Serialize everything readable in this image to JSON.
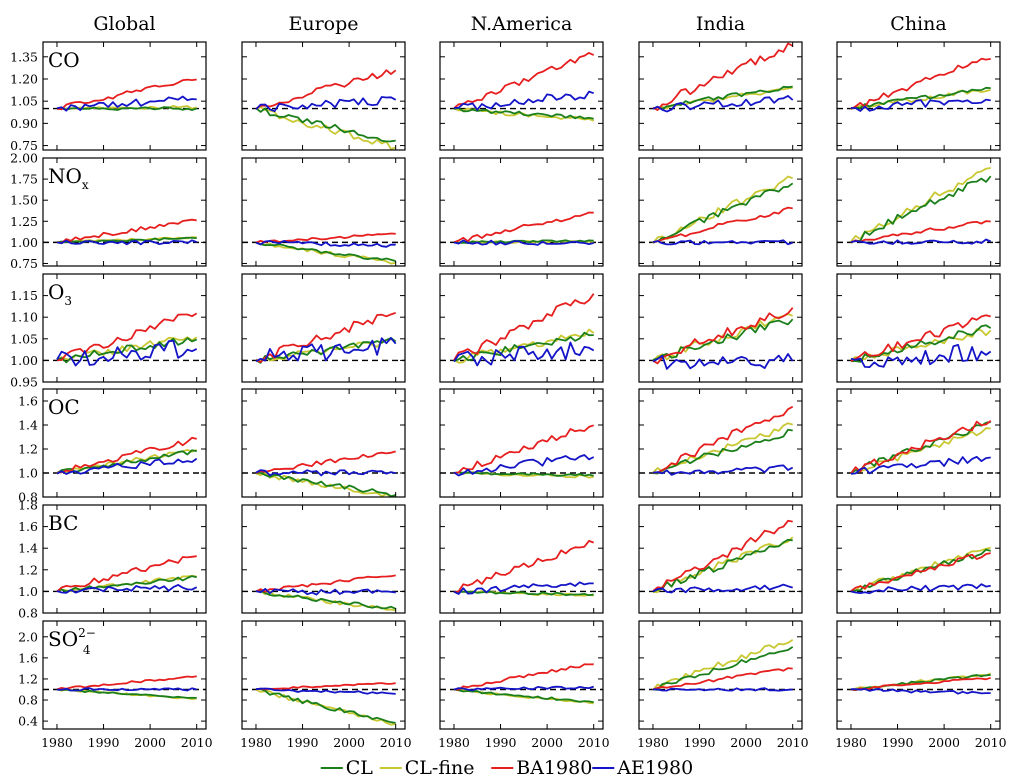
{
  "chart_data": {
    "type": "line",
    "regions": [
      "Global",
      "Europe",
      "N.America",
      "India",
      "China"
    ],
    "species": [
      {
        "key": "CO",
        "label": "CO",
        "sub": "",
        "sup": "",
        "ylim": [
          0.72,
          1.45
        ],
        "yticks": [
          "0.75",
          "0.90",
          "1.05",
          "1.20",
          "1.35"
        ]
      },
      {
        "key": "NOx",
        "label": "NO",
        "sub": "x",
        "sup": "",
        "ylim": [
          0.72,
          2.0
        ],
        "yticks": [
          "0.75",
          "1.00",
          "1.25",
          "1.50",
          "1.75",
          "2.00"
        ]
      },
      {
        "key": "O3",
        "label": "O",
        "sub": "3",
        "sup": "",
        "ylim": [
          0.95,
          1.2
        ],
        "yticks": [
          "0.95",
          "1.00",
          "1.05",
          "1.10",
          "1.15"
        ]
      },
      {
        "key": "OC",
        "label": "OC",
        "sub": "",
        "sup": "",
        "ylim": [
          0.8,
          1.7
        ],
        "yticks": [
          "0.8",
          "1.0",
          "1.2",
          "1.4",
          "1.6"
        ]
      },
      {
        "key": "BC",
        "label": "BC",
        "sub": "",
        "sup": "",
        "ylim": [
          0.8,
          1.8
        ],
        "yticks": [
          "0.8",
          "1.0",
          "1.2",
          "1.4",
          "1.6",
          "1.8"
        ]
      },
      {
        "key": "SO4",
        "label": "SO",
        "sub": "4",
        "sup": "2−",
        "ylim": [
          0.25,
          2.3
        ],
        "yticks": [
          "0.4",
          "0.8",
          "1.2",
          "1.6",
          "2.0"
        ]
      }
    ],
    "x_range": [
      1977,
      2012
    ],
    "xticks": [
      "1980",
      "1990",
      "2000",
      "2010"
    ],
    "legend": {
      "placement": "bottom-center",
      "entries": [
        {
          "name": "CL",
          "color": "#1a7f1a"
        },
        {
          "name": "CL-fine",
          "color": "#c8c832"
        },
        {
          "name": "BA1980",
          "color": "#e61e1e"
        },
        {
          "name": "AE1980",
          "color": "#1414c8"
        }
      ]
    },
    "reference_line": 1.0,
    "series_order": [
      "CL-fine",
      "CL",
      "BA1980",
      "AE1980"
    ],
    "end_values": {
      "CO": {
        "Global": {
          "CL": 1.0,
          "CL-fine": 1.01,
          "BA1980": 1.2,
          "AE1980": 1.06
        },
        "Europe": {
          "CL": 0.78,
          "CL-fine": 0.74,
          "BA1980": 1.26,
          "AE1980": 1.06
        },
        "N.America": {
          "CL": 0.93,
          "CL-fine": 0.92,
          "BA1980": 1.36,
          "AE1980": 1.1
        },
        "India": {
          "CL": 1.15,
          "CL-fine": 1.14,
          "BA1980": 1.43,
          "AE1980": 1.06
        },
        "China": {
          "CL": 1.14,
          "CL-fine": 1.13,
          "BA1980": 1.34,
          "AE1980": 1.06
        }
      },
      "NOx": {
        "Global": {
          "CL": 1.05,
          "CL-fine": 1.06,
          "BA1980": 1.26,
          "AE1980": 1.0
        },
        "Europe": {
          "CL": 0.78,
          "CL-fine": 0.76,
          "BA1980": 1.1,
          "AE1980": 0.97
        },
        "N.America": {
          "CL": 1.02,
          "CL-fine": 1.01,
          "BA1980": 1.35,
          "AE1980": 0.99
        },
        "India": {
          "CL": 1.7,
          "CL-fine": 1.76,
          "BA1980": 1.4,
          "AE1980": 1.0
        },
        "China": {
          "CL": 1.79,
          "CL-fine": 1.88,
          "BA1980": 1.25,
          "AE1980": 1.01
        }
      },
      "O3": {
        "Global": {
          "CL": 1.05,
          "CL-fine": 1.055,
          "BA1980": 1.11,
          "AE1980": 1.03
        },
        "Europe": {
          "CL": 1.045,
          "CL-fine": 1.045,
          "BA1980": 1.11,
          "AE1980": 1.04
        },
        "N.America": {
          "CL": 1.06,
          "CL-fine": 1.065,
          "BA1980": 1.155,
          "AE1980": 1.025
        },
        "India": {
          "CL": 1.095,
          "CL-fine": 1.105,
          "BA1980": 1.12,
          "AE1980": 1.0
        },
        "China": {
          "CL": 1.075,
          "CL-fine": 1.07,
          "BA1980": 1.1,
          "AE1980": 1.02
        }
      },
      "OC": {
        "Global": {
          "CL": 1.18,
          "CL-fine": 1.19,
          "BA1980": 1.28,
          "AE1980": 1.12
        },
        "Europe": {
          "CL": 0.82,
          "CL-fine": 0.8,
          "BA1980": 1.18,
          "AE1980": 1.0
        },
        "N.America": {
          "CL": 0.98,
          "CL-fine": 0.97,
          "BA1980": 1.4,
          "AE1980": 1.14
        },
        "India": {
          "CL": 1.35,
          "CL-fine": 1.4,
          "BA1980": 1.55,
          "AE1980": 1.04
        },
        "China": {
          "CL": 1.42,
          "CL-fine": 1.37,
          "BA1980": 1.44,
          "AE1980": 1.13
        }
      },
      "BC": {
        "Global": {
          "CL": 1.13,
          "CL-fine": 1.14,
          "BA1980": 1.33,
          "AE1980": 1.04
        },
        "Europe": {
          "CL": 0.84,
          "CL-fine": 0.82,
          "BA1980": 1.15,
          "AE1980": 0.99
        },
        "N.America": {
          "CL": 0.97,
          "CL-fine": 0.96,
          "BA1980": 1.45,
          "AE1980": 1.07
        },
        "India": {
          "CL": 1.47,
          "CL-fine": 1.5,
          "BA1980": 1.65,
          "AE1980": 1.04
        },
        "China": {
          "CL": 1.38,
          "CL-fine": 1.4,
          "BA1980": 1.36,
          "AE1980": 1.05
        }
      },
      "SO4": {
        "Global": {
          "CL": 0.84,
          "CL-fine": 0.83,
          "BA1980": 1.25,
          "AE1980": 1.0
        },
        "Europe": {
          "CL": 0.36,
          "CL-fine": 0.34,
          "BA1980": 1.12,
          "AE1980": 0.92
        },
        "N.America": {
          "CL": 0.76,
          "CL-fine": 0.74,
          "BA1980": 1.48,
          "AE1980": 1.05
        },
        "India": {
          "CL": 1.8,
          "CL-fine": 1.95,
          "BA1980": 1.4,
          "AE1980": 1.0
        },
        "China": {
          "CL": 1.28,
          "CL-fine": 1.3,
          "BA1980": 1.22,
          "AE1980": 0.93
        }
      }
    }
  }
}
